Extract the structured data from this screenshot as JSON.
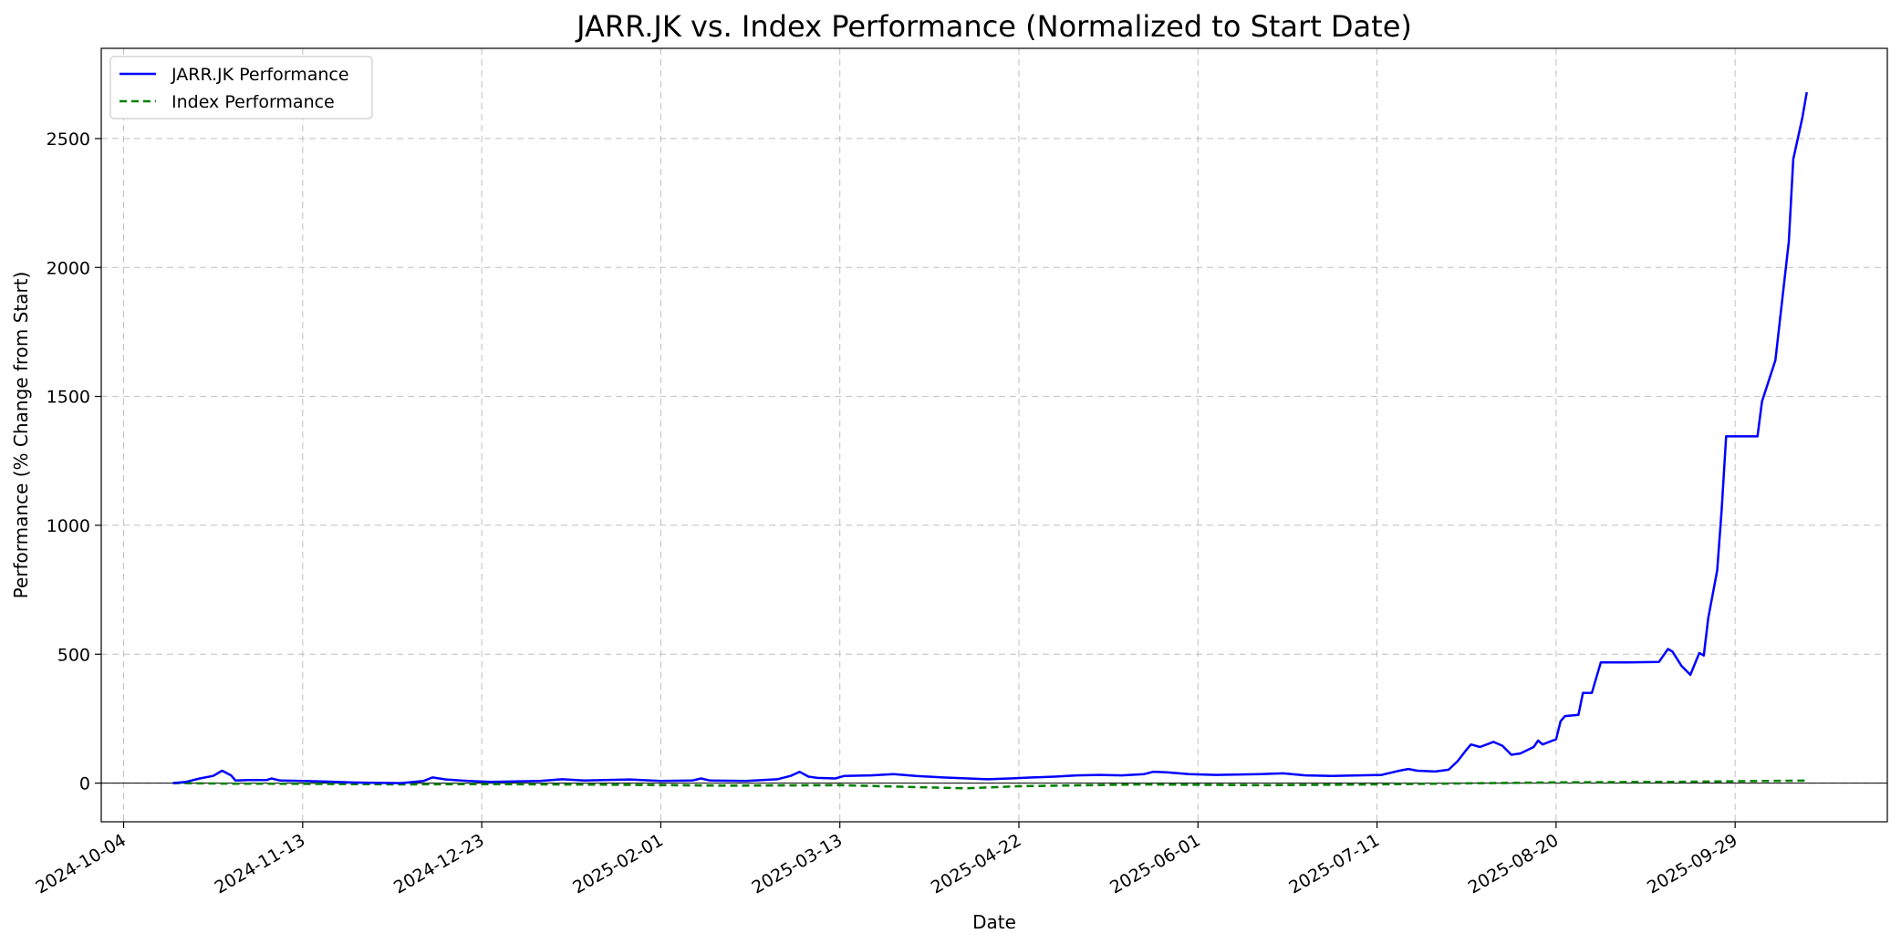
{
  "chart_data": {
    "type": "line",
    "title": "JARR.JK vs. Index Performance (Normalized to Start Date)",
    "xlabel": "Date",
    "ylabel": "Performance (% Change from Start)",
    "x_axis": "date",
    "xlim": [
      "2024-09-29",
      "2025-11-02"
    ],
    "ylim": [
      -150,
      2850
    ],
    "x_ticks": [
      "2024-10-04",
      "2024-11-13",
      "2024-12-23",
      "2025-02-01",
      "2025-03-13",
      "2025-04-22",
      "2025-06-01",
      "2025-07-11",
      "2025-08-20",
      "2025-09-29"
    ],
    "y_ticks": [
      0,
      500,
      1000,
      1500,
      2000,
      2500
    ],
    "grid": true,
    "zero_line": true,
    "legend_position": "top-left",
    "series": [
      {
        "name": "JARR.JK Performance",
        "color": "#0000ff",
        "style": "solid",
        "points": [
          [
            "2024-10-15",
            0
          ],
          [
            "2024-10-18",
            5
          ],
          [
            "2024-10-21",
            18
          ],
          [
            "2024-10-24",
            28
          ],
          [
            "2024-10-26",
            48
          ],
          [
            "2024-10-28",
            30
          ],
          [
            "2024-10-29",
            10
          ],
          [
            "2024-11-01",
            12
          ],
          [
            "2024-11-05",
            12
          ],
          [
            "2024-11-06",
            18
          ],
          [
            "2024-11-08",
            10
          ],
          [
            "2024-11-13",
            8
          ],
          [
            "2024-11-18",
            6
          ],
          [
            "2024-11-25",
            2
          ],
          [
            "2024-12-05",
            0
          ],
          [
            "2024-12-10",
            8
          ],
          [
            "2024-12-12",
            22
          ],
          [
            "2024-12-15",
            14
          ],
          [
            "2024-12-20",
            8
          ],
          [
            "2024-12-25",
            5
          ],
          [
            "2025-01-05",
            8
          ],
          [
            "2025-01-10",
            15
          ],
          [
            "2025-01-15",
            10
          ],
          [
            "2025-01-25",
            14
          ],
          [
            "2025-02-01",
            8
          ],
          [
            "2025-02-08",
            10
          ],
          [
            "2025-02-10",
            18
          ],
          [
            "2025-02-12",
            10
          ],
          [
            "2025-02-20",
            8
          ],
          [
            "2025-02-27",
            15
          ],
          [
            "2025-03-02",
            28
          ],
          [
            "2025-03-04",
            44
          ],
          [
            "2025-03-06",
            25
          ],
          [
            "2025-03-08",
            20
          ],
          [
            "2025-03-12",
            18
          ],
          [
            "2025-03-14",
            28
          ],
          [
            "2025-03-20",
            30
          ],
          [
            "2025-03-25",
            35
          ],
          [
            "2025-03-30",
            28
          ],
          [
            "2025-04-05",
            22
          ],
          [
            "2025-04-15",
            15
          ],
          [
            "2025-04-20",
            18
          ],
          [
            "2025-04-25",
            22
          ],
          [
            "2025-04-30",
            25
          ],
          [
            "2025-05-05",
            30
          ],
          [
            "2025-05-10",
            32
          ],
          [
            "2025-05-15",
            30
          ],
          [
            "2025-05-20",
            35
          ],
          [
            "2025-05-22",
            44
          ],
          [
            "2025-05-25",
            42
          ],
          [
            "2025-05-30",
            35
          ],
          [
            "2025-06-05",
            32
          ],
          [
            "2025-06-15",
            35
          ],
          [
            "2025-06-20",
            38
          ],
          [
            "2025-06-25",
            30
          ],
          [
            "2025-07-01",
            28
          ],
          [
            "2025-07-07",
            30
          ],
          [
            "2025-07-12",
            32
          ],
          [
            "2025-07-16",
            48
          ],
          [
            "2025-07-18",
            55
          ],
          [
            "2025-07-20",
            48
          ],
          [
            "2025-07-24",
            45
          ],
          [
            "2025-07-27",
            52
          ],
          [
            "2025-07-29",
            85
          ],
          [
            "2025-07-31",
            130
          ],
          [
            "2025-08-01",
            150
          ],
          [
            "2025-08-03",
            140
          ],
          [
            "2025-08-06",
            160
          ],
          [
            "2025-08-08",
            145
          ],
          [
            "2025-08-10",
            110
          ],
          [
            "2025-08-12",
            115
          ],
          [
            "2025-08-15",
            140
          ],
          [
            "2025-08-16",
            165
          ],
          [
            "2025-08-17",
            150
          ],
          [
            "2025-08-20",
            170
          ],
          [
            "2025-08-21",
            240
          ],
          [
            "2025-08-22",
            260
          ],
          [
            "2025-08-25",
            265
          ],
          [
            "2025-08-26",
            350
          ],
          [
            "2025-08-28",
            350
          ],
          [
            "2025-08-30",
            468
          ],
          [
            "2025-09-05",
            468
          ],
          [
            "2025-09-12",
            470
          ],
          [
            "2025-09-14",
            520
          ],
          [
            "2025-09-15",
            510
          ],
          [
            "2025-09-17",
            455
          ],
          [
            "2025-09-19",
            420
          ],
          [
            "2025-09-21",
            505
          ],
          [
            "2025-09-22",
            495
          ],
          [
            "2025-09-23",
            640
          ],
          [
            "2025-09-25",
            825
          ],
          [
            "2025-09-26",
            1060
          ],
          [
            "2025-09-27",
            1345
          ],
          [
            "2025-09-30",
            1345
          ],
          [
            "2025-10-04",
            1345
          ],
          [
            "2025-10-05",
            1480
          ],
          [
            "2025-10-08",
            1640
          ],
          [
            "2025-10-11",
            2100
          ],
          [
            "2025-10-12",
            2420
          ],
          [
            "2025-10-14",
            2580
          ],
          [
            "2025-10-15",
            2680
          ]
        ]
      },
      {
        "name": "Index Performance",
        "color": "#008000",
        "style": "dashed",
        "points": [
          [
            "2024-10-15",
            0
          ],
          [
            "2024-10-28",
            -2
          ],
          [
            "2024-11-13",
            -3
          ],
          [
            "2024-12-05",
            -5
          ],
          [
            "2024-12-23",
            -4
          ],
          [
            "2025-01-20",
            -6
          ],
          [
            "2025-02-15",
            -10
          ],
          [
            "2025-03-13",
            -8
          ],
          [
            "2025-04-10",
            -20
          ],
          [
            "2025-04-22",
            -12
          ],
          [
            "2025-05-20",
            -5
          ],
          [
            "2025-06-15",
            -8
          ],
          [
            "2025-07-11",
            -5
          ],
          [
            "2025-08-05",
            0
          ],
          [
            "2025-08-20",
            3
          ],
          [
            "2025-09-15",
            5
          ],
          [
            "2025-10-05",
            8
          ],
          [
            "2025-10-15",
            10
          ]
        ]
      }
    ]
  }
}
